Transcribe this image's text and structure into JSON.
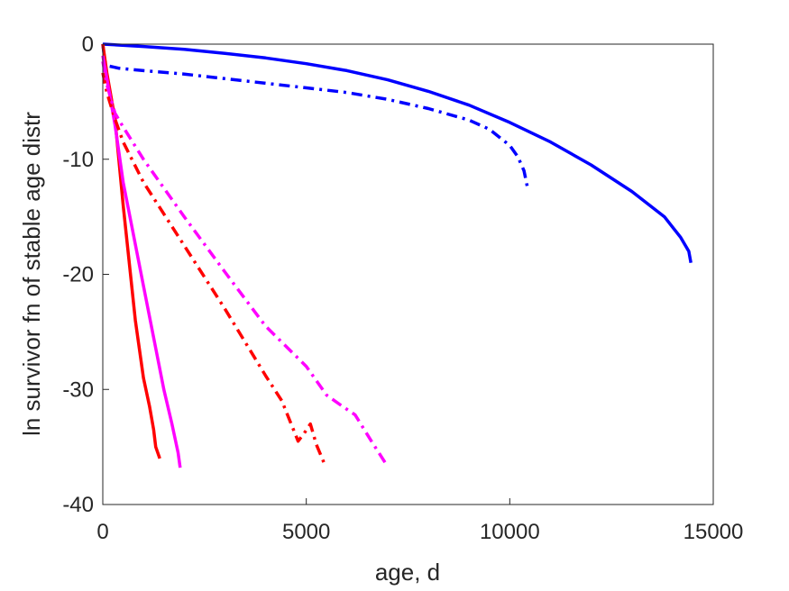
{
  "chart_data": {
    "type": "line",
    "title": "",
    "xlabel": "age, d",
    "ylabel": "ln survivor fn of stable age distr",
    "xlim": [
      0,
      15000
    ],
    "ylim": [
      -40,
      0
    ],
    "xticks": [
      0,
      5000,
      10000,
      15000
    ],
    "xtick_labels": [
      "0",
      "5000",
      "10000",
      "15000"
    ],
    "yticks": [
      0,
      -10,
      -20,
      -30,
      -40
    ],
    "ytick_labels": [
      "0",
      "-10",
      "-20",
      "-30",
      "-40"
    ],
    "grid": false,
    "series": [
      {
        "color": "#0000ff",
        "style": "solid",
        "x": [
          0,
          1000,
          2000,
          3000,
          4000,
          5000,
          6000,
          7000,
          8000,
          9000,
          10000,
          11000,
          12000,
          13000,
          13800,
          14200,
          14400,
          14450
        ],
        "y": [
          0,
          -0.2,
          -0.45,
          -0.8,
          -1.2,
          -1.7,
          -2.3,
          -3.1,
          -4.1,
          -5.3,
          -6.8,
          -8.5,
          -10.5,
          -12.8,
          -15,
          -16.8,
          -18,
          -19
        ]
      },
      {
        "color": "#0000ff",
        "style": "dashdot",
        "x": [
          0,
          50,
          150,
          400,
          1000,
          2000,
          3000,
          4000,
          5000,
          6000,
          7000,
          8000,
          9000,
          9500,
          10000,
          10200,
          10350,
          10450
        ],
        "y": [
          0,
          -1.5,
          -1.9,
          -2.1,
          -2.3,
          -2.6,
          -3.0,
          -3.4,
          -3.8,
          -4.2,
          -4.8,
          -5.6,
          -6.6,
          -7.4,
          -8.8,
          -9.8,
          -11,
          -12.7
        ]
      },
      {
        "color": "#ff0000",
        "style": "solid",
        "x": [
          0,
          100,
          300,
          500,
          800,
          1000,
          1150,
          1250,
          1300,
          1400
        ],
        "y": [
          0,
          -2.5,
          -6.5,
          -14,
          -24,
          -29,
          -31.5,
          -33.5,
          -35,
          -36
        ]
      },
      {
        "color": "#ff00ff",
        "style": "solid",
        "x": [
          0,
          100,
          300,
          500,
          1000,
          1500,
          1700,
          1850,
          1900
        ],
        "y": [
          -1,
          -3,
          -7,
          -12,
          -21,
          -30,
          -33,
          -35.5,
          -36.8
        ]
      },
      {
        "color": "#ff0000",
        "style": "dashdot",
        "x": [
          0,
          100,
          300,
          500,
          1000,
          2000,
          3000,
          4000,
          4400,
          4800,
          4950,
          5100,
          5250,
          5450
        ],
        "y": [
          -2.5,
          -4.2,
          -6.5,
          -8.5,
          -12,
          -17.5,
          -23,
          -28.8,
          -31,
          -34.5,
          -33.8,
          -33,
          -34.8,
          -36.5
        ]
      },
      {
        "color": "#ff00ff",
        "style": "dashdot",
        "x": [
          0,
          100,
          300,
          500,
          1000,
          2000,
          3000,
          4000,
          5000,
          5500,
          5900,
          6200,
          6600,
          7000
        ],
        "y": [
          -1.5,
          -3.5,
          -6,
          -7.2,
          -10,
          -15,
          -19.8,
          -24.5,
          -28,
          -30.5,
          -31.5,
          -32.2,
          -34.5,
          -36.7
        ]
      }
    ]
  }
}
